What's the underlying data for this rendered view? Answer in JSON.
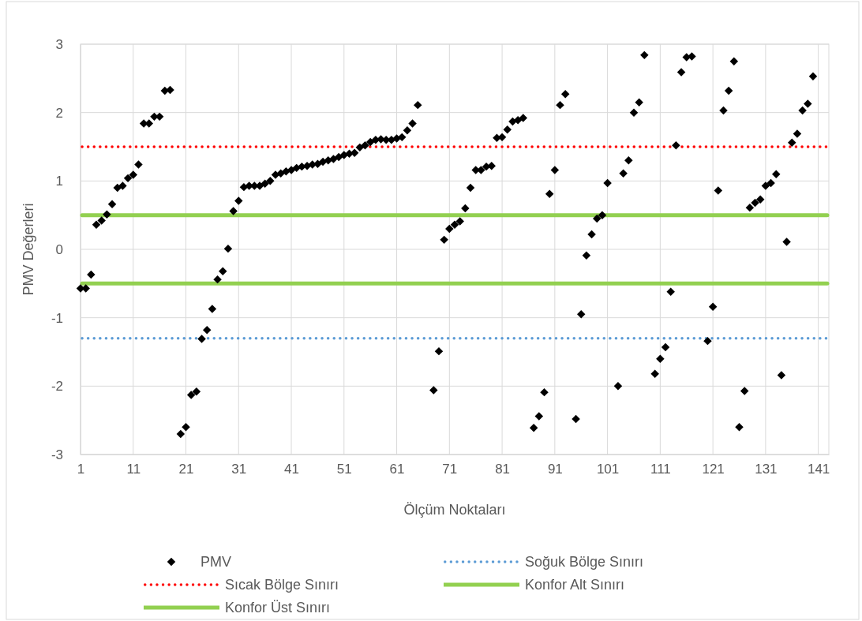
{
  "chart_data": {
    "type": "scatter",
    "xlabel": "Ölçüm Noktaları",
    "ylabel": "PMV Değerleri",
    "xlim": [
      1,
      143
    ],
    "xticks": [
      1,
      11,
      21,
      31,
      41,
      51,
      61,
      71,
      81,
      91,
      101,
      111,
      121,
      131,
      141
    ],
    "ylim": [
      -3,
      3
    ],
    "yticks": [
      -3,
      -2,
      -1,
      0,
      1,
      2,
      3
    ],
    "grid": true,
    "legend": "bottom",
    "marker": "diamond",
    "series": [
      {
        "name": "PMV",
        "color": "#000000",
        "x": [
          1,
          2,
          3,
          4,
          5,
          6,
          7,
          8,
          9,
          10,
          11,
          12,
          13,
          14,
          15,
          16,
          17,
          18,
          20,
          21,
          22,
          23,
          24,
          25,
          26,
          27,
          28,
          29,
          30,
          31,
          32,
          33,
          34,
          35,
          36,
          37,
          38,
          39,
          40,
          41,
          42,
          43,
          44,
          45,
          46,
          47,
          48,
          49,
          50,
          51,
          52,
          53,
          54,
          55,
          56,
          57,
          58,
          59,
          60,
          61,
          62,
          63,
          64,
          65,
          68,
          69,
          70,
          71,
          72,
          73,
          74,
          75,
          76,
          77,
          78,
          79,
          80,
          81,
          82,
          83,
          84,
          85,
          87,
          88,
          89,
          90,
          91,
          92,
          93,
          95,
          96,
          97,
          98,
          99,
          100,
          101,
          103,
          104,
          105,
          106,
          107,
          108,
          110,
          111,
          112,
          113,
          114,
          115,
          116,
          117,
          120,
          121,
          122,
          123,
          124,
          125,
          126,
          127,
          128,
          129,
          130,
          131,
          132,
          133,
          134,
          135,
          136,
          137,
          138,
          139,
          140
        ],
        "values": [
          -0.57,
          -0.57,
          -0.37,
          0.36,
          0.42,
          0.51,
          0.66,
          0.9,
          0.93,
          1.04,
          1.09,
          1.24,
          1.84,
          1.84,
          1.94,
          1.94,
          2.32,
          2.33,
          -2.7,
          -2.6,
          -2.13,
          -2.08,
          -1.31,
          -1.18,
          -0.87,
          -0.44,
          -0.32,
          0.01,
          0.56,
          0.71,
          0.91,
          0.93,
          0.93,
          0.93,
          0.96,
          1.0,
          1.09,
          1.11,
          1.14,
          1.16,
          1.19,
          1.21,
          1.22,
          1.24,
          1.25,
          1.28,
          1.3,
          1.32,
          1.35,
          1.38,
          1.4,
          1.41,
          1.49,
          1.52,
          1.57,
          1.6,
          1.61,
          1.6,
          1.6,
          1.62,
          1.64,
          1.74,
          1.84,
          2.11,
          -2.06,
          -1.49,
          0.14,
          0.3,
          0.36,
          0.41,
          0.6,
          0.9,
          1.16,
          1.16,
          1.21,
          1.22,
          1.63,
          1.64,
          1.75,
          1.87,
          1.89,
          1.92,
          -2.61,
          -2.44,
          -2.09,
          0.81,
          1.16,
          2.11,
          2.27,
          -2.48,
          -0.95,
          -0.09,
          0.22,
          0.45,
          0.5,
          0.97,
          -2.0,
          1.11,
          1.3,
          2.0,
          2.15,
          2.84,
          -1.82,
          -1.6,
          -1.43,
          -0.62,
          1.52,
          2.59,
          2.81,
          2.82,
          -1.34,
          -0.84,
          0.86,
          2.03,
          2.32,
          2.75,
          -2.6,
          -2.07,
          0.61,
          0.68,
          0.73,
          0.93,
          0.97,
          1.1,
          -1.84,
          0.11,
          1.56,
          1.69,
          2.03,
          2.13,
          2.53
        ]
      }
    ],
    "ref_lines": [
      {
        "axis": "y",
        "value": -1.3,
        "label": "Soğuk Bölge Sınırı",
        "color": "#5b9bd5",
        "line_style": "dotted"
      },
      {
        "axis": "y",
        "value": 1.5,
        "label": "Sıcak Bölge Sınırı",
        "color": "#ff0000",
        "line_style": "dotted"
      },
      {
        "axis": "y",
        "value": -0.5,
        "label": "Konfor Alt Sınırı",
        "color": "#92d050",
        "line_style": "solid"
      },
      {
        "axis": "y",
        "value": 0.5,
        "label": "Konfor Üst Sınırı",
        "color": "#92d050",
        "line_style": "solid"
      }
    ]
  }
}
